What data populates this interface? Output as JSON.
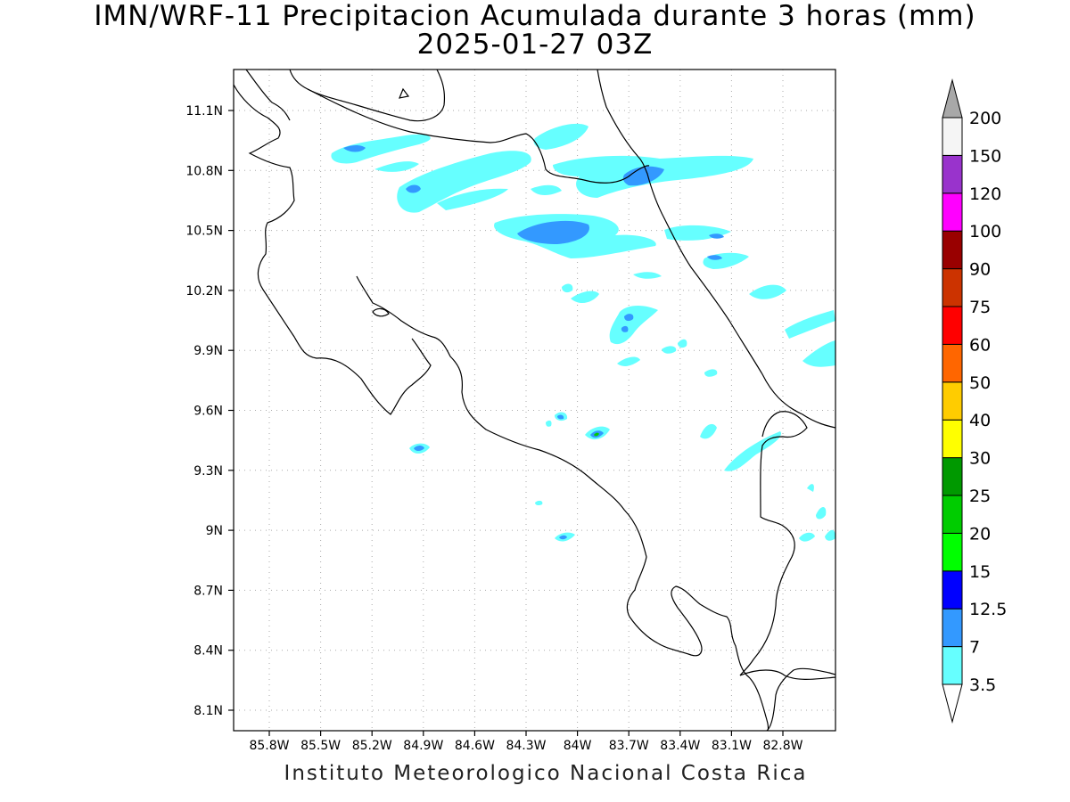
{
  "title": "IMN/WRF-11 Precipitacion Acumulada durante 3 horas (mm)",
  "subtitle": "2025-01-27 03Z",
  "footer": "Instituto Meteorologico Nacional Costa Rica",
  "axes": {
    "lat_labels": [
      "11.1N",
      "10.8N",
      "10.5N",
      "10.2N",
      "9.9N",
      "9.6N",
      "9.3N",
      "9N",
      "8.7N",
      "8.4N",
      "8.1N"
    ],
    "lon_labels": [
      "85.8W",
      "85.5W",
      "85.2W",
      "84.9W",
      "84.6W",
      "84.3W",
      "84W",
      "83.7W",
      "83.4W",
      "83.1W",
      "82.8W"
    ]
  },
  "colorbar": {
    "levels": [
      "3.5",
      "7",
      "12.5",
      "15",
      "20",
      "25",
      "30",
      "40",
      "50",
      "60",
      "75",
      "90",
      "100",
      "120",
      "150",
      "200"
    ],
    "colors": [
      "#66ffff",
      "#3399ff",
      "#0000ff",
      "#00ff00",
      "#00cc00",
      "#009900",
      "#ffff00",
      "#ffcc00",
      "#ff6600",
      "#ff0000",
      "#cc3300",
      "#990000",
      "#ff00ff",
      "#9933cc",
      "#f5f5f5"
    ],
    "over_color": "#a8a8a8",
    "under_color": "#ffffff"
  },
  "rain_colors": {
    "light": "#66ffff",
    "moderate": "#3399ff",
    "heavy": "#00cc00"
  }
}
